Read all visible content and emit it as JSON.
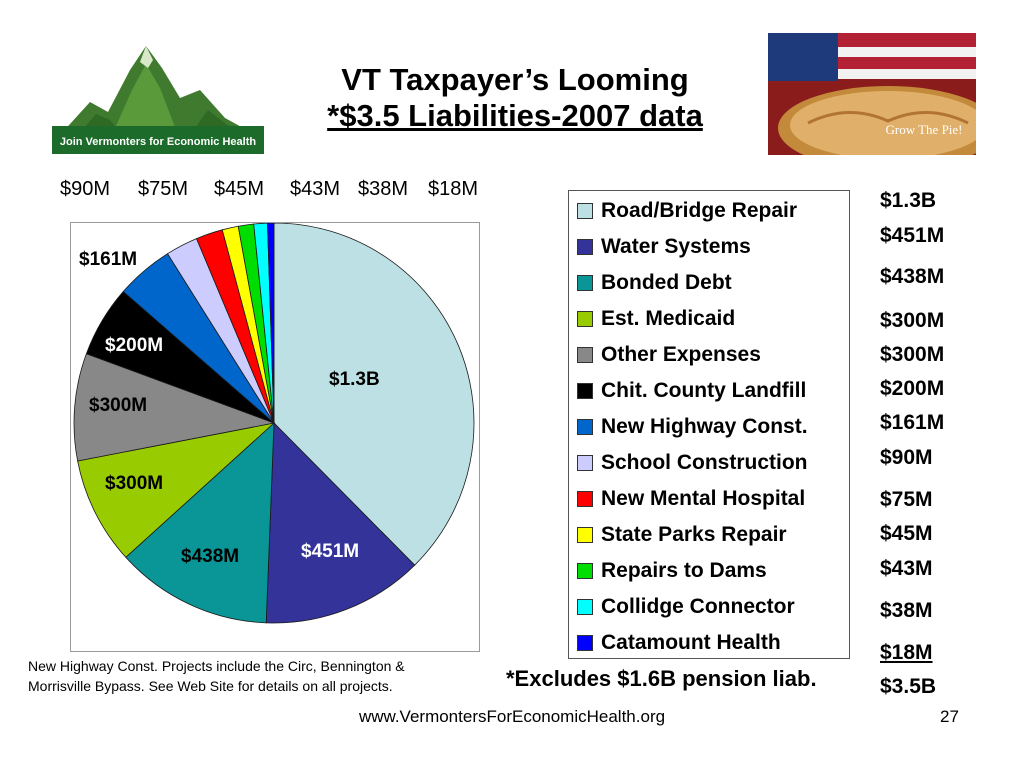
{
  "title": {
    "line1": "VT Taxpayer’s Looming",
    "line2": "*$3.5 Liabilities-2007 data"
  },
  "logo": {
    "text": "Join Vermonters for Economic Health"
  },
  "pie_image": {
    "caption": "Grow The Pie!"
  },
  "top_value_labels": [
    "$90M",
    "$75M",
    "$45M",
    "$43M",
    "$38M",
    "$18M"
  ],
  "chart_data": {
    "type": "pie",
    "title": "",
    "slices": [
      {
        "label": "Road/Bridge Repair",
        "value": 1300,
        "display": "$1.3B",
        "color": "#bde0e4"
      },
      {
        "label": "Water Systems",
        "value": 451,
        "display": "$451M",
        "color": "#33339a"
      },
      {
        "label": "Bonded Debt",
        "value": 438,
        "display": "$438M",
        "color": "#0a9696"
      },
      {
        "label": "Est. Medicaid",
        "value": 300,
        "display": "$300M",
        "color": "#99cc00"
      },
      {
        "label": "Other Expenses",
        "value": 300,
        "display": "$300M",
        "color": "#888888"
      },
      {
        "label": "Chit. County Landfill",
        "value": 200,
        "display": "$200M",
        "color": "#000000"
      },
      {
        "label": "New Highway Const.",
        "value": 161,
        "display": "$161M",
        "color": "#0066cc"
      },
      {
        "label": "School Construction",
        "value": 90,
        "display": "$90M",
        "color": "#ccccff"
      },
      {
        "label": "New Mental Hospital",
        "value": 75,
        "display": "$75M",
        "color": "#ff0000"
      },
      {
        "label": "State Parks Repair",
        "value": 45,
        "display": "$45M",
        "color": "#ffff00"
      },
      {
        "label": "Repairs to Dams",
        "value": 43,
        "display": "$43M",
        "color": "#00dd00"
      },
      {
        "label": "Collidge Connector",
        "value": 38,
        "display": "$38M",
        "color": "#00ffff"
      },
      {
        "label": "Catamount Health",
        "value": 18,
        "display": "$18M",
        "color": "#0000ff"
      }
    ],
    "legend_position": "right",
    "total_display": "$3.5B"
  },
  "footnote": {
    "line1": "New Highway Const. Projects include the Circ, Bennington &",
    "line2": "Morrisville Bypass. See Web Site for details on all projects."
  },
  "exclusion_note": "*Excludes $1.6B pension liab.",
  "website": "www.VermontersForEconomicHealth.org",
  "page_number": "27"
}
